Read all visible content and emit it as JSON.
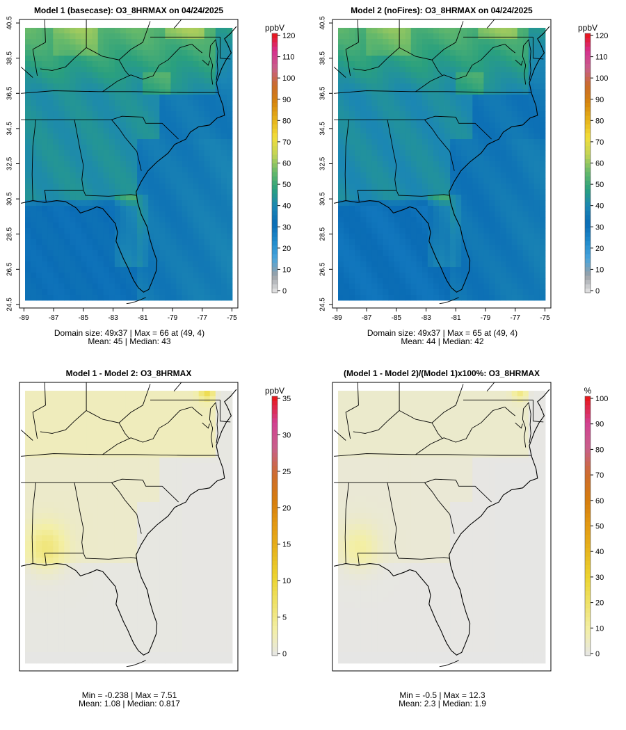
{
  "panels": [
    {
      "id": "model1",
      "title": "Model 1 (basecase): O3_8HRMAX on 04/24/2025",
      "unit": "ppbV",
      "stats_line1": "Domain size: 49x37 | Max = 66 at (49, 4)",
      "stats_line2": "Mean: 45 |  Median: 43",
      "show_axes": true,
      "scale": "conc",
      "colorbar": {
        "ticks": [
          "0",
          "10",
          "20",
          "30",
          "40",
          "50",
          "60",
          "70",
          "80",
          "90",
          "100",
          "110",
          "120"
        ],
        "min": 0,
        "max": 120
      }
    },
    {
      "id": "model2",
      "title": "Model 2 (noFires): O3_8HRMAX on 04/24/2025",
      "unit": "ppbV",
      "stats_line1": "Domain size: 49x37 | Max = 65 at (49, 4)",
      "stats_line2": "Mean: 44 |  Median: 42",
      "show_axes": true,
      "scale": "conc",
      "colorbar": {
        "ticks": [
          "0",
          "10",
          "20",
          "30",
          "40",
          "50",
          "60",
          "70",
          "80",
          "90",
          "100",
          "110",
          "120"
        ],
        "min": 0,
        "max": 120
      }
    },
    {
      "id": "diff",
      "title": "Model 1 - Model 2: O3_8HRMAX",
      "unit": "ppbV",
      "stats_line1": "Min = -0.238 | Max = 7.51",
      "stats_line2": "Mean: 1.08 |  Median: 0.817",
      "show_axes": false,
      "scale": "diff",
      "colorbar": {
        "ticks": [
          "0",
          "5",
          "10",
          "15",
          "20",
          "25",
          "30",
          "35"
        ],
        "min": 0,
        "max": 35
      }
    },
    {
      "id": "pctdiff",
      "title": "(Model 1 - Model 2)/(Model 1)x100%: O3_8HRMAX",
      "unit": "%",
      "stats_line1": "Min = -0.5 | Max = 12.3",
      "stats_line2": "Mean: 2.3 |  Median: 1.9",
      "show_axes": false,
      "scale": "diff",
      "colorbar": {
        "ticks": [
          "0",
          "10",
          "20",
          "30",
          "40",
          "50",
          "60",
          "70",
          "80",
          "90",
          "100"
        ],
        "min": 0,
        "max": 100
      }
    }
  ],
  "axes": {
    "x_ticks": [
      "-89",
      "-87",
      "-85",
      "-83",
      "-81",
      "-79",
      "-77",
      "-75"
    ],
    "y_ticks": [
      "24.5",
      "26.5",
      "28.5",
      "30.5",
      "32.5",
      "34.5",
      "36.5",
      "38.5",
      "40.5"
    ]
  },
  "colors": {
    "conc": [
      "#e6e6e6",
      "#9aa0a6",
      "#49a4dc",
      "#1e8acb",
      "#0a6cb5",
      "#1b86b4",
      "#2aa07e",
      "#66b96a",
      "#c2d457",
      "#f2de3a",
      "#e6b31a",
      "#d6850d",
      "#c96b2a",
      "#c8608a",
      "#d6308e",
      "#e81414"
    ],
    "diff": [
      "#e6e6e6",
      "#f3efa6",
      "#efe26a",
      "#ecd431",
      "#e7b61e",
      "#e39a12",
      "#d67c0e",
      "#cd6c2e",
      "#c8608a",
      "#d24090",
      "#e81414"
    ],
    "panel_border": "#000000"
  }
}
